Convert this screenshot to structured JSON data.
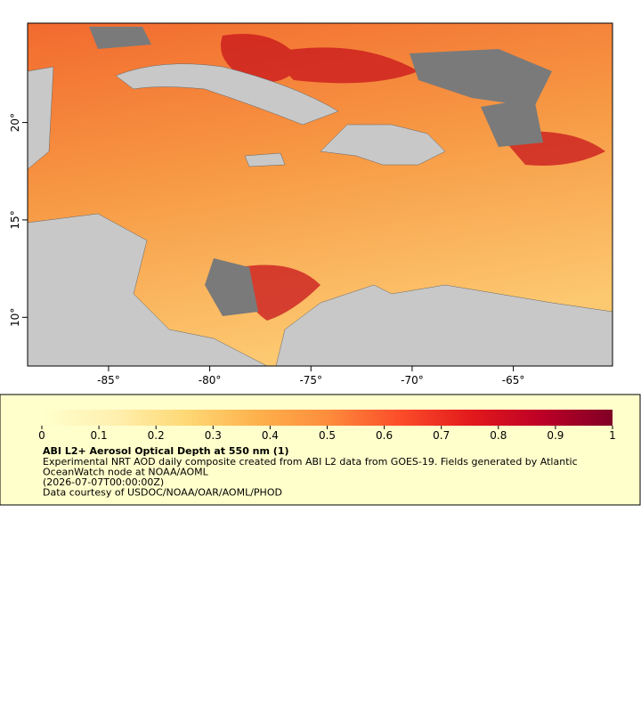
{
  "map": {
    "xlim": [
      -89,
      -60.1
    ],
    "ylim": [
      7.5,
      25.1
    ],
    "xticks": [
      {
        "value": -85,
        "label": "-85°"
      },
      {
        "value": -80,
        "label": "-80°"
      },
      {
        "value": -75,
        "label": "-75°"
      },
      {
        "value": -70,
        "label": "-70°"
      },
      {
        "value": -65,
        "label": "-65°"
      }
    ],
    "yticks": [
      {
        "value": 10,
        "label": "10°"
      },
      {
        "value": 15,
        "label": "15°"
      },
      {
        "value": 20,
        "label": "20°"
      }
    ]
  },
  "colorbar": {
    "range": [
      0,
      1
    ],
    "ticks": [
      0,
      0.1,
      0.2,
      0.3,
      0.4,
      0.5,
      0.6,
      0.7,
      0.8,
      0.9,
      1
    ],
    "colors": [
      "#ffffcc",
      "#fff0b0",
      "#fed976",
      "#feb24c",
      "#fd8d3c",
      "#fc4e2a",
      "#e31a1c",
      "#bd0026",
      "#800026"
    ]
  },
  "legend": {
    "title": "ABI L2+ Aerosol Optical Depth at 550 nm (1)",
    "lines": [
      "Experimental NRT AOD daily composite created from ABI L2 data from GOES-19. Fields generated by Atlantic",
      "OceanWatch node at NOAA/AOML",
      "(2026-07-07T00:00:00Z)",
      "Data courtesy of USDOC/NOAA/OAR/AOML/PHOD"
    ]
  }
}
